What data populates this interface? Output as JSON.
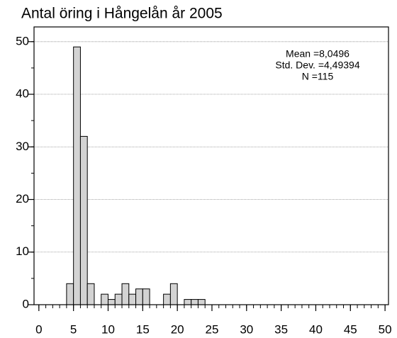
{
  "chart_data": {
    "type": "histogram",
    "title": "Antal öring i Hångelån år 2005",
    "annotations": [
      "Mean =8,0496",
      "Std. Dev. =4,49394",
      "N =115"
    ],
    "bins": [
      4,
      5,
      6,
      7,
      8,
      9,
      10,
      11,
      12,
      13,
      14,
      15,
      16,
      17,
      18,
      19,
      20,
      21,
      22,
      23,
      24
    ],
    "values": [
      4,
      49,
      32,
      4,
      0,
      2,
      1,
      2,
      4,
      2,
      3,
      3,
      0,
      0,
      2,
      4,
      0,
      1,
      1,
      1
    ],
    "color": "#d3d3d3",
    "xlim": [
      -0.7,
      50.5
    ],
    "xticks": [
      0,
      5,
      10,
      15,
      20,
      25,
      30,
      35,
      40,
      45,
      50
    ],
    "xminorticks": [
      0,
      1,
      2,
      3,
      4,
      5,
      6,
      7,
      8,
      9,
      10,
      11,
      12,
      13,
      14,
      15,
      16,
      17,
      18,
      19,
      20,
      21,
      22,
      23,
      24,
      25,
      26,
      27,
      28,
      29,
      30,
      31,
      32,
      33,
      34,
      35,
      36,
      37,
      38,
      39,
      40,
      41,
      42,
      43,
      44,
      45,
      46,
      47,
      48,
      49,
      50
    ],
    "ylim": [
      0,
      52.8
    ],
    "yticks": [
      0,
      10,
      20,
      30,
      40,
      50
    ],
    "yminorticks": [
      0,
      5,
      10,
      15,
      20,
      25,
      30,
      35,
      40,
      45,
      50
    ],
    "grid": true
  }
}
